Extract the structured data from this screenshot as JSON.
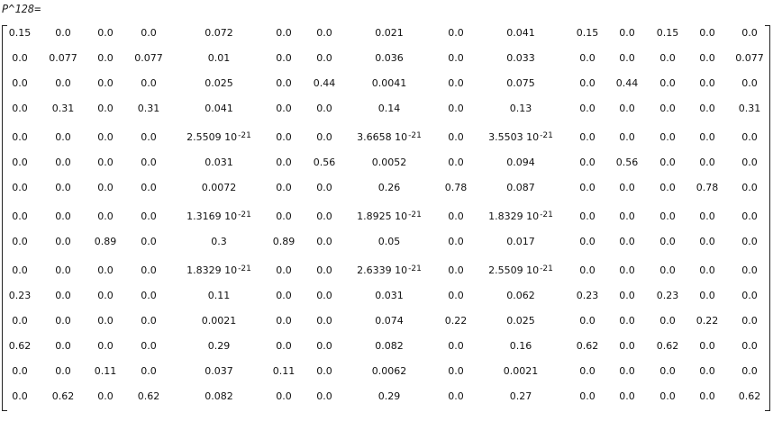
{
  "label": "P^128=",
  "matrix": {
    "rows": [
      [
        "0.15",
        "0.0",
        "0.0",
        "0.0",
        "0.072",
        "0.0",
        "0.0",
        "0.021",
        "0.0",
        "0.041",
        "0.15",
        "0.0",
        "0.15",
        "0.0",
        "0.0"
      ],
      [
        "0.0",
        "0.077",
        "0.0",
        "0.077",
        "0.01",
        "0.0",
        "0.0",
        "0.036",
        "0.0",
        "0.033",
        "0.0",
        "0.0",
        "0.0",
        "0.0",
        "0.077"
      ],
      [
        "0.0",
        "0.0",
        "0.0",
        "0.0",
        "0.025",
        "0.0",
        "0.44",
        "0.0041",
        "0.0",
        "0.075",
        "0.0",
        "0.44",
        "0.0",
        "0.0",
        "0.0"
      ],
      [
        "0.0",
        "0.31",
        "0.0",
        "0.31",
        "0.041",
        "0.0",
        "0.0",
        "0.14",
        "0.0",
        "0.13",
        "0.0",
        "0.0",
        "0.0",
        "0.0",
        "0.31"
      ],
      [
        "0.0",
        "0.0",
        "0.0",
        "0.0",
        {
          "base": "2.5509 10",
          "exp": "-21"
        },
        "0.0",
        "0.0",
        {
          "base": "3.6658 10",
          "exp": "-21"
        },
        "0.0",
        {
          "base": "3.5503 10",
          "exp": "-21"
        },
        "0.0",
        "0.0",
        "0.0",
        "0.0",
        "0.0"
      ],
      [
        "0.0",
        "0.0",
        "0.0",
        "0.0",
        "0.031",
        "0.0",
        "0.56",
        "0.0052",
        "0.0",
        "0.094",
        "0.0",
        "0.56",
        "0.0",
        "0.0",
        "0.0"
      ],
      [
        "0.0",
        "0.0",
        "0.0",
        "0.0",
        "0.0072",
        "0.0",
        "0.0",
        "0.26",
        "0.78",
        "0.087",
        "0.0",
        "0.0",
        "0.0",
        "0.78",
        "0.0"
      ],
      [
        "0.0",
        "0.0",
        "0.0",
        "0.0",
        {
          "base": "1.3169 10",
          "exp": "-21"
        },
        "0.0",
        "0.0",
        {
          "base": "1.8925 10",
          "exp": "-21"
        },
        "0.0",
        {
          "base": "1.8329 10",
          "exp": "-21"
        },
        "0.0",
        "0.0",
        "0.0",
        "0.0",
        "0.0"
      ],
      [
        "0.0",
        "0.0",
        "0.89",
        "0.0",
        "0.3",
        "0.89",
        "0.0",
        "0.05",
        "0.0",
        "0.017",
        "0.0",
        "0.0",
        "0.0",
        "0.0",
        "0.0"
      ],
      [
        "0.0",
        "0.0",
        "0.0",
        "0.0",
        {
          "base": "1.8329 10",
          "exp": "-21"
        },
        "0.0",
        "0.0",
        {
          "base": "2.6339 10",
          "exp": "-21"
        },
        "0.0",
        {
          "base": "2.5509 10",
          "exp": "-21"
        },
        "0.0",
        "0.0",
        "0.0",
        "0.0",
        "0.0"
      ],
      [
        "0.23",
        "0.0",
        "0.0",
        "0.0",
        "0.11",
        "0.0",
        "0.0",
        "0.031",
        "0.0",
        "0.062",
        "0.23",
        "0.0",
        "0.23",
        "0.0",
        "0.0"
      ],
      [
        "0.0",
        "0.0",
        "0.0",
        "0.0",
        "0.0021",
        "0.0",
        "0.0",
        "0.074",
        "0.22",
        "0.025",
        "0.0",
        "0.0",
        "0.0",
        "0.22",
        "0.0"
      ],
      [
        "0.62",
        "0.0",
        "0.0",
        "0.0",
        "0.29",
        "0.0",
        "0.0",
        "0.082",
        "0.0",
        "0.16",
        "0.62",
        "0.0",
        "0.62",
        "0.0",
        "0.0"
      ],
      [
        "0.0",
        "0.0",
        "0.11",
        "0.0",
        "0.037",
        "0.11",
        "0.0",
        "0.0062",
        "0.0",
        "0.0021",
        "0.0",
        "0.0",
        "0.0",
        "0.0",
        "0.0"
      ],
      [
        "0.0",
        "0.62",
        "0.0",
        "0.62",
        "0.082",
        "0.0",
        "0.0",
        "0.29",
        "0.0",
        "0.27",
        "0.0",
        "0.0",
        "0.0",
        "0.0",
        "0.62"
      ]
    ]
  }
}
